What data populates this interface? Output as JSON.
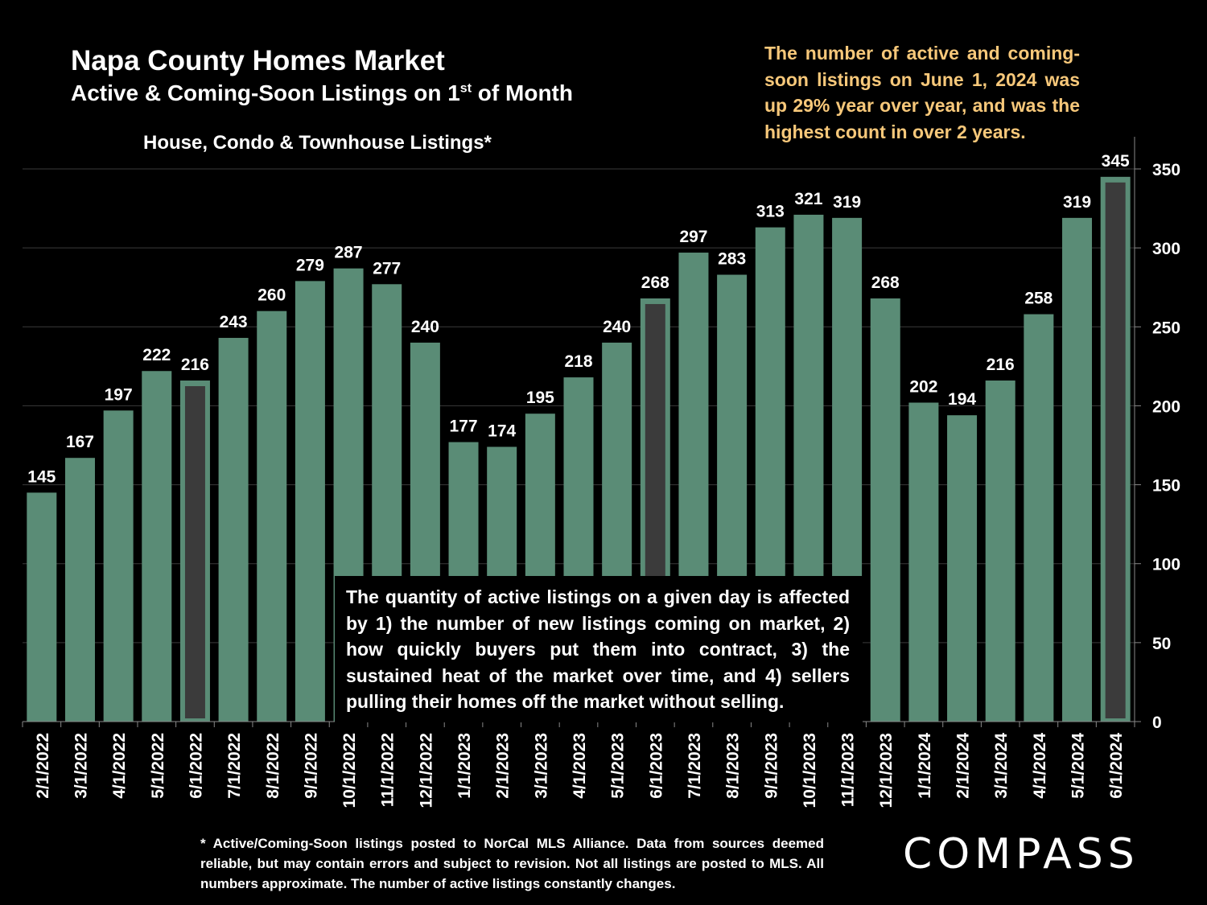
{
  "header": {
    "title": "Napa County Homes Market",
    "subtitle_main": "Active & Coming-Soon Listings on 1",
    "subtitle_sup": "st",
    "subtitle_end": " of Month",
    "category": "House, Condo & Townhouse Listings*"
  },
  "callout_top": "The number of active and coming-soon listings on June 1, 2024 was up 29% year over year, and was the highest count in over 2 years.",
  "callout_box": "The quantity of active listings on a given day is affected by 1) the number of new listings coming on market, 2) how quickly buyers put them into contract, 3) the sustained heat of the market over time, and 4) sellers pulling their homes off the market without selling.",
  "footnote": "* Active/Coming-Soon listings posted to NorCal MLS Alliance.  Data from sources deemed reliable, but may contain errors and subject to revision.  Not all listings are posted to MLS. All numbers approximate. The number of active listings constantly changes.",
  "logo": "COMPASS",
  "colors": {
    "bar": "#5a8c76",
    "highlight_inner": "#3b3b3b",
    "callout": "#f7c87a",
    "background": "#000000"
  },
  "chart_data": {
    "type": "bar",
    "categories": [
      "2/1/2022",
      "3/1/2022",
      "4/1/2022",
      "5/1/2022",
      "6/1/2022",
      "7/1/2022",
      "8/1/2022",
      "9/1/2022",
      "10/1/2022",
      "11/1/2022",
      "12/1/2022",
      "1/1/2023",
      "2/1/2023",
      "3/1/2023",
      "4/1/2023",
      "5/1/2023",
      "6/1/2023",
      "7/1/2023",
      "8/1/2023",
      "9/1/2023",
      "10/1/2023",
      "11/1/2023",
      "12/1/2023",
      "1/1/2024",
      "2/1/2024",
      "3/1/2024",
      "4/1/2024",
      "5/1/2024",
      "6/1/2024"
    ],
    "values": [
      145,
      167,
      197,
      222,
      216,
      243,
      260,
      279,
      287,
      277,
      240,
      177,
      174,
      195,
      218,
      240,
      268,
      297,
      283,
      313,
      321,
      319,
      268,
      202,
      194,
      216,
      258,
      319,
      345
    ],
    "highlighted": [
      "6/1/2022",
      "6/1/2023",
      "6/1/2024"
    ],
    "y_ticks": [
      0,
      50,
      100,
      150,
      200,
      250,
      300,
      350
    ],
    "ylim": [
      0,
      350
    ],
    "y_axis_side": "right",
    "grid": true
  }
}
